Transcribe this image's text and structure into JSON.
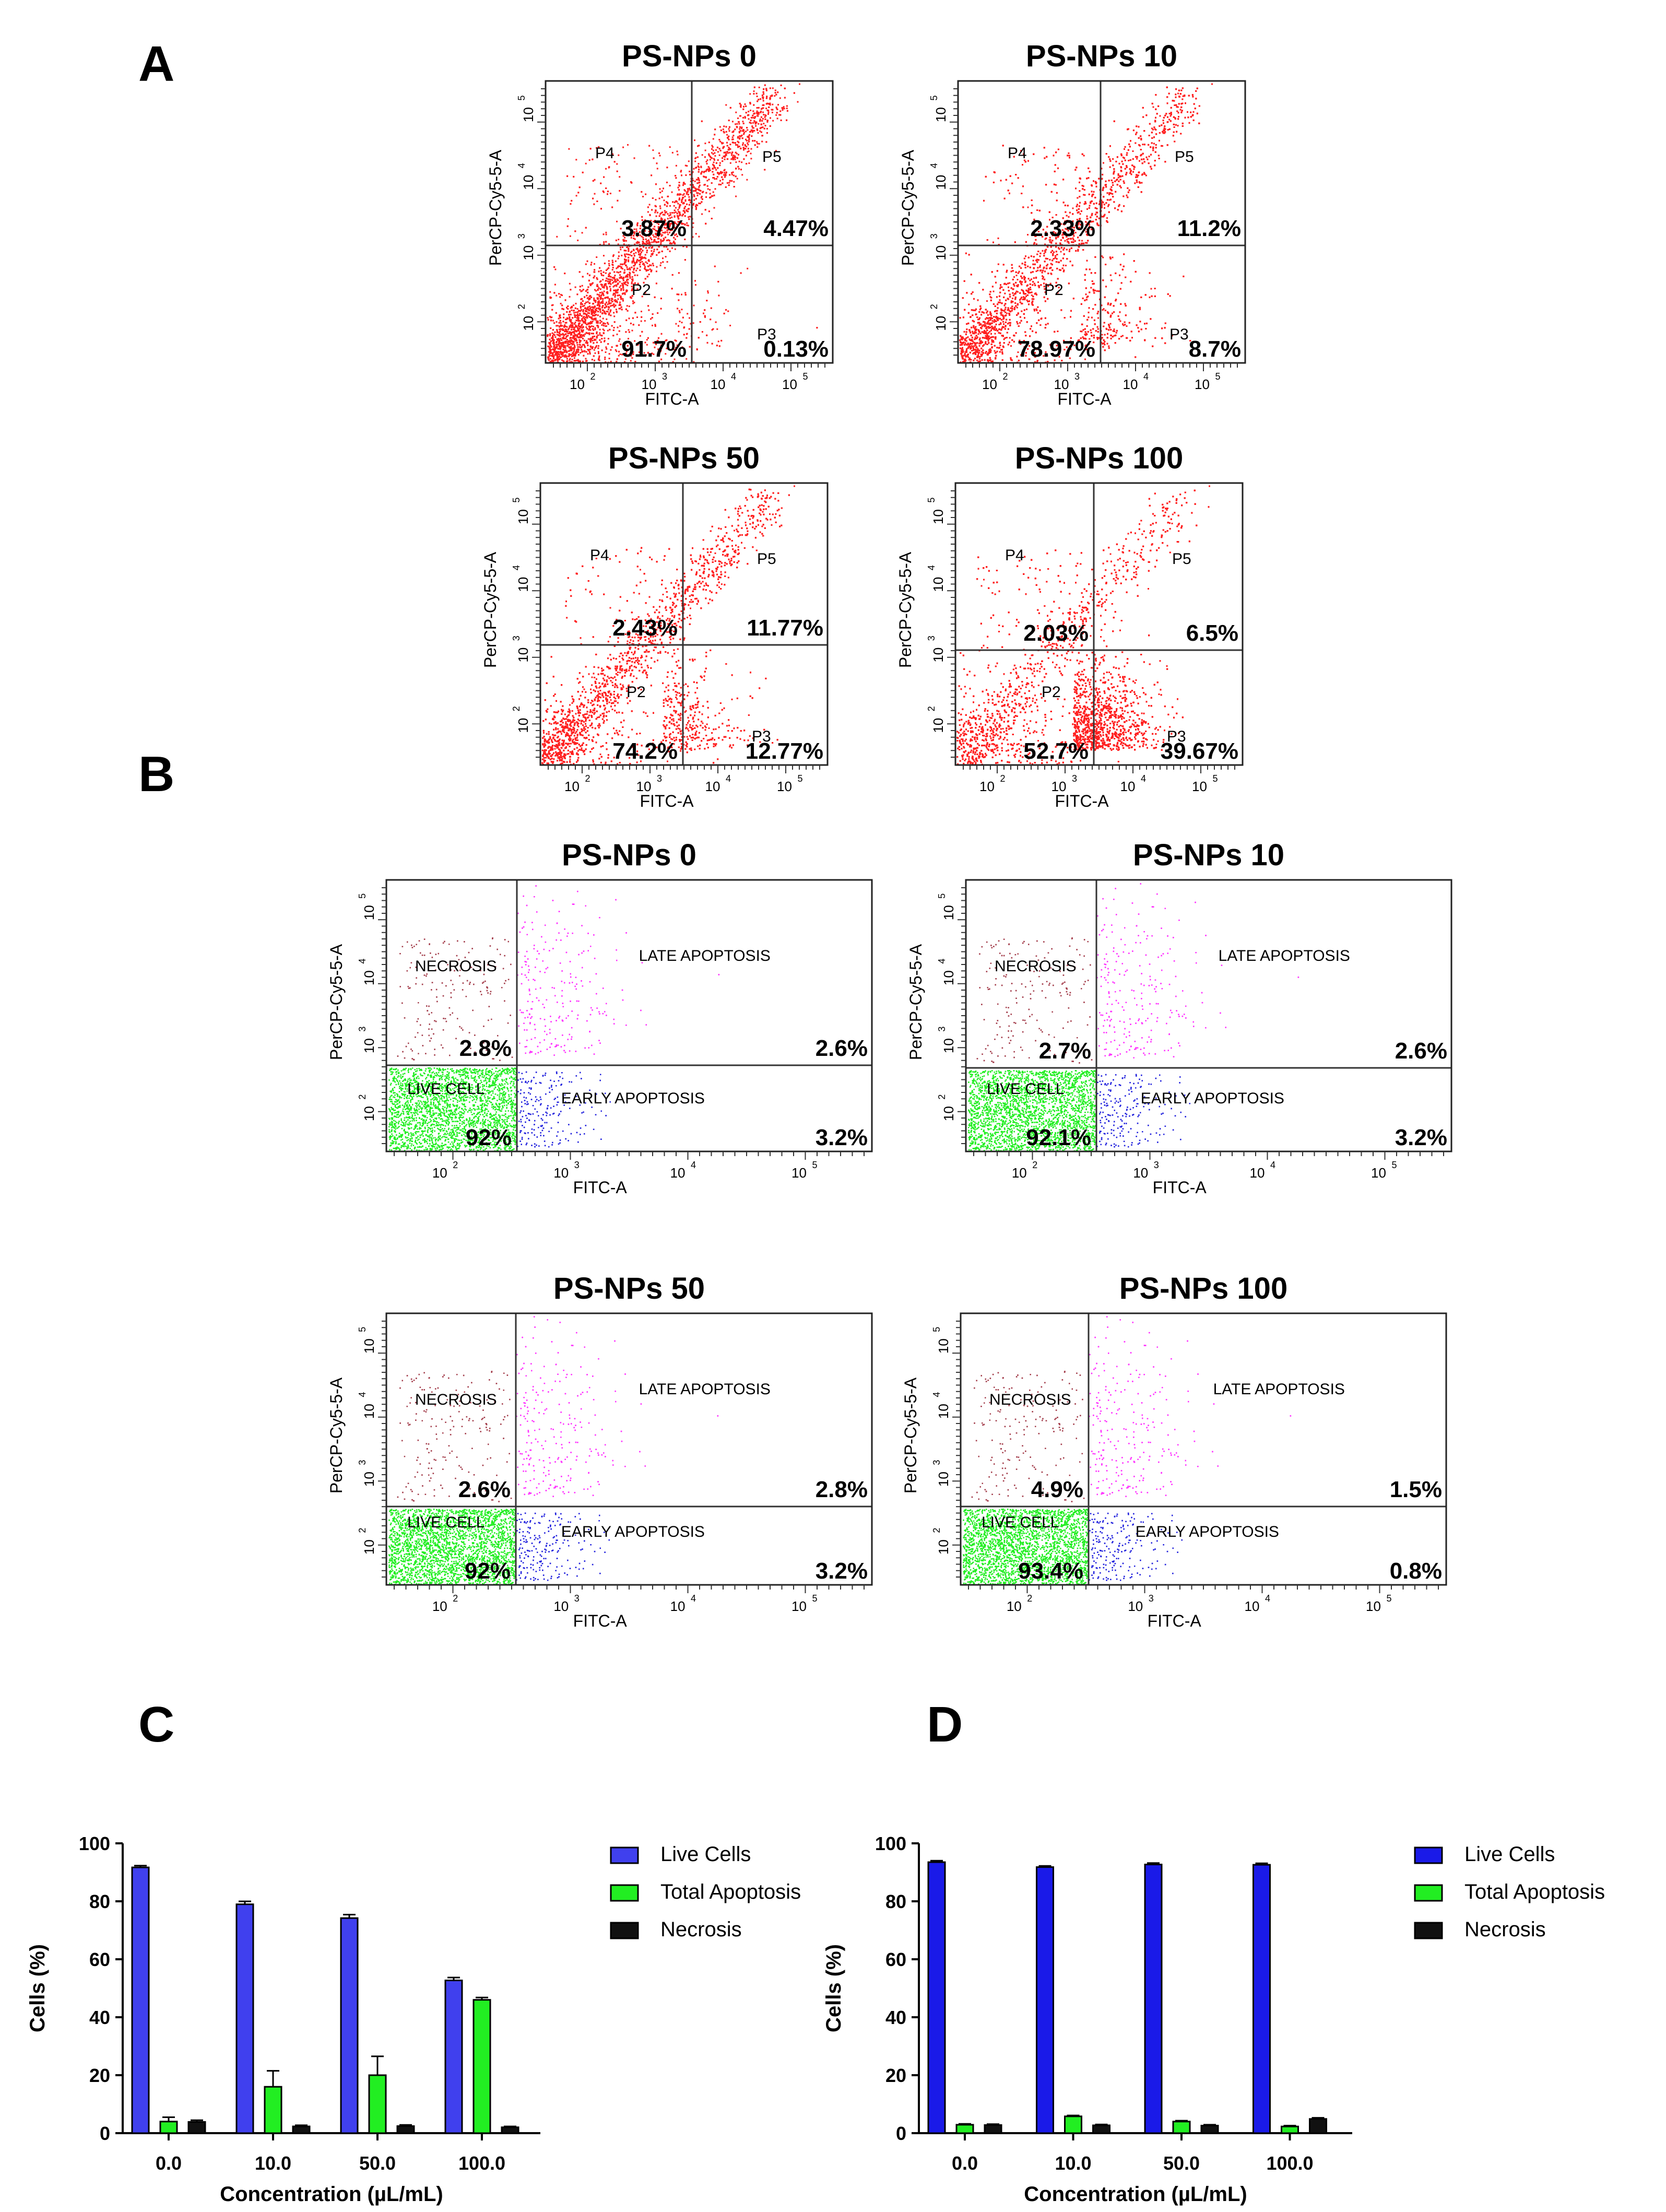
{
  "panel_labels": {
    "A": "A",
    "B": "B",
    "C": "C",
    "D": "D"
  },
  "colors": {
    "red": "#ff2020",
    "green": "#22ee22",
    "blue": "#2222dd",
    "magenta": "#ff33ff",
    "brown": "#a5404e",
    "live_bar": "#4040ee",
    "apop_bar": "#22ee22",
    "necro_bar": "#111111",
    "live_bar_d": "#1a1ae8"
  },
  "flow_axis": {
    "x_label": "FITC-A",
    "y_label": "PerCP-Cy5-5-A",
    "ticks": [
      "10",
      "10",
      "10",
      "10"
    ],
    "tick_exp": [
      "2",
      "3",
      "4",
      "5"
    ]
  },
  "panel_a": {
    "gates": {
      "p2": "P2",
      "p3": "P3",
      "p4": "P4",
      "p5": "P5"
    },
    "plots": [
      {
        "title": "PS-NPs 0",
        "ul": "3.87%",
        "ur": "4.47%",
        "ll": "91.7%",
        "lr": "0.13%"
      },
      {
        "title": "PS-NPs 10",
        "ul": "2.33%",
        "ur": "11.2%",
        "ll": "78.97%",
        "lr": "8.7%"
      },
      {
        "title": "PS-NPs 50",
        "ul": "2.43%",
        "ur": "11.77%",
        "ll": "74.2%",
        "lr": "12.77%"
      },
      {
        "title": "PS-NPs 100",
        "ul": "2.03%",
        "ur": "6.5%",
        "ll": "52.7%",
        "lr": "39.67%"
      }
    ]
  },
  "panel_b": {
    "regions": {
      "necrosis": "NECROSIS",
      "late": "LATE APOPTOSIS",
      "live": "LIVE CELL",
      "early": "EARLY APOPTOSIS"
    },
    "plots": [
      {
        "title": "PS-NPs 0",
        "ul": "2.8%",
        "ur": "2.6%",
        "ll": "92%",
        "lr": "3.2%"
      },
      {
        "title": "PS-NPs 10",
        "ul": "2.7%",
        "ur": "2.6%",
        "ll": "92.1%",
        "lr": "3.2%"
      },
      {
        "title": "PS-NPs 50",
        "ul": "2.6%",
        "ur": "2.8%",
        "ll": "92%",
        "lr": "3.2%"
      },
      {
        "title": "PS-NPs 100",
        "ul": "4.9%",
        "ur": "1.5%",
        "ll": "93.4%",
        "lr": "0.8%"
      }
    ]
  },
  "chart_data": [
    {
      "panel": "C",
      "type": "bar",
      "xlabel": "Concentration (µL/mL)",
      "ylabel": "Cells (%)",
      "ylim": [
        0,
        100
      ],
      "yticks": [
        "0",
        "20",
        "40",
        "60",
        "80",
        "100"
      ],
      "categories": [
        "0.0",
        "10.0",
        "50.0",
        "100.0"
      ],
      "series": [
        {
          "name": "Live Cells",
          "values": [
            91.7,
            78.97,
            74.2,
            52.7
          ],
          "errors": [
            0.6,
            1.0,
            1.2,
            1.0
          ]
        },
        {
          "name": "Total Apoptosis",
          "values": [
            4.0,
            16.0,
            20.0,
            46.0
          ],
          "errors": [
            1.5,
            5.5,
            6.5,
            0.8
          ]
        },
        {
          "name": "Necrosis",
          "values": [
            3.87,
            2.33,
            2.43,
            2.03
          ],
          "errors": [
            0.6,
            0.4,
            0.4,
            0.3
          ]
        }
      ]
    },
    {
      "panel": "D",
      "type": "bar",
      "xlabel": "Concentration (µL/mL)",
      "ylabel": "Cells (%)",
      "ylim": [
        0,
        100
      ],
      "yticks": [
        "0",
        "20",
        "40",
        "60",
        "80",
        "100"
      ],
      "categories": [
        "0.0",
        "10.0",
        "50.0",
        "100.0"
      ],
      "series": [
        {
          "name": "Live Cells",
          "values": [
            93.5,
            91.8,
            92.7,
            92.6
          ],
          "errors": [
            0.5,
            0.4,
            0.5,
            0.5
          ]
        },
        {
          "name": "Total Apoptosis",
          "values": [
            2.9,
            5.8,
            4.0,
            2.3
          ],
          "errors": [
            0.3,
            0.3,
            0.3,
            0.3
          ]
        },
        {
          "name": "Necrosis",
          "values": [
            2.8,
            2.7,
            2.6,
            4.9
          ],
          "errors": [
            0.3,
            0.3,
            0.3,
            0.4
          ]
        }
      ]
    }
  ]
}
